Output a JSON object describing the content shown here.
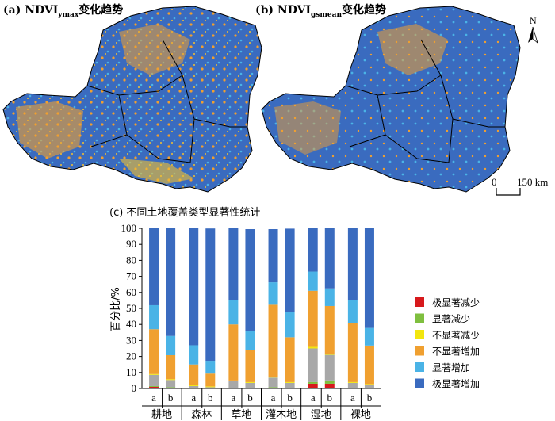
{
  "maps": [
    {
      "prefix": "(a) NDVI",
      "subscript": "ymax",
      "suffix": "变化趋势"
    },
    {
      "prefix": "(b) NDVI",
      "subscript": "gsmean",
      "suffix": "变化趋势"
    }
  ],
  "north_label": "N",
  "scale": {
    "zero": "0",
    "label": "150 km"
  },
  "colors": {
    "sig_dec_extreme": "#d7191c",
    "sig_dec": "#7fbf3f",
    "nonsig_dec": "#f2e60f",
    "nonsig_inc": "#f0a030",
    "sig_inc": "#4ab3e6",
    "sig_inc_extreme": "#3a6bbf",
    "gray_segment": "#a8a8a8",
    "map_blue": "#3a6bbf",
    "map_orange": "#f0a030"
  },
  "chart_data": {
    "type": "bar",
    "stacked": true,
    "title": "(c) 不同土地覆盖类型显著性统计",
    "ylabel": "百分比/%",
    "ylim": [
      0,
      100
    ],
    "yticks": [
      0,
      10,
      20,
      30,
      40,
      50,
      60,
      70,
      80,
      90,
      100
    ],
    "groups": [
      "耕地",
      "森林",
      "草地",
      "灌木地",
      "湿地",
      "裸地"
    ],
    "bar_labels": [
      "a",
      "b"
    ],
    "series": [
      {
        "name": "极显著减少",
        "color": "#d7191c",
        "values": [
          [
            1,
            0.5
          ],
          [
            0.3,
            0.2
          ],
          [
            0.3,
            0.3
          ],
          [
            0.5,
            0.3
          ],
          [
            3,
            3
          ],
          [
            0.3,
            0.2
          ]
        ]
      },
      {
        "name": "显著减少",
        "color": "#7fbf3f",
        "values": [
          [
            0.5,
            0.3
          ],
          [
            0.2,
            0.1
          ],
          [
            0.2,
            0.2
          ],
          [
            0.3,
            0.2
          ],
          [
            1,
            2
          ],
          [
            0.2,
            0.1
          ]
        ]
      },
      {
        "name": "",
        "color": "#a8a8a8",
        "values": [
          [
            7,
            4.5
          ],
          [
            1,
            0.5
          ],
          [
            4,
            3
          ],
          [
            6,
            3
          ],
          [
            21,
            16
          ],
          [
            3,
            2
          ]
        ]
      },
      {
        "name": "不显著减少",
        "color": "#f2e60f",
        "values": [
          [
            0.5,
            0.5
          ],
          [
            0.5,
            0.5
          ],
          [
            0.5,
            0.5
          ],
          [
            0.5,
            0.5
          ],
          [
            1,
            0.5
          ],
          [
            0.5,
            0.5
          ]
        ]
      },
      {
        "name": "不显著增加",
        "color": "#f0a030",
        "values": [
          [
            28,
            15
          ],
          [
            13,
            8
          ],
          [
            35,
            20
          ],
          [
            45,
            28
          ],
          [
            35,
            30
          ],
          [
            37,
            24
          ]
        ]
      },
      {
        "name": "显著增加",
        "color": "#4ab3e6",
        "values": [
          [
            15,
            12
          ],
          [
            12,
            8
          ],
          [
            15,
            12
          ],
          [
            14,
            16
          ],
          [
            12,
            11
          ],
          [
            14,
            11
          ]
        ]
      },
      {
        "name": "极显著增加",
        "color": "#3a6bbf",
        "values": [
          [
            48,
            67.2
          ],
          [
            73,
            82.6
          ],
          [
            45,
            63.5
          ],
          [
            33.2,
            51.8
          ],
          [
            27,
            37.5
          ],
          [
            45,
            62.2
          ]
        ]
      }
    ]
  }
}
